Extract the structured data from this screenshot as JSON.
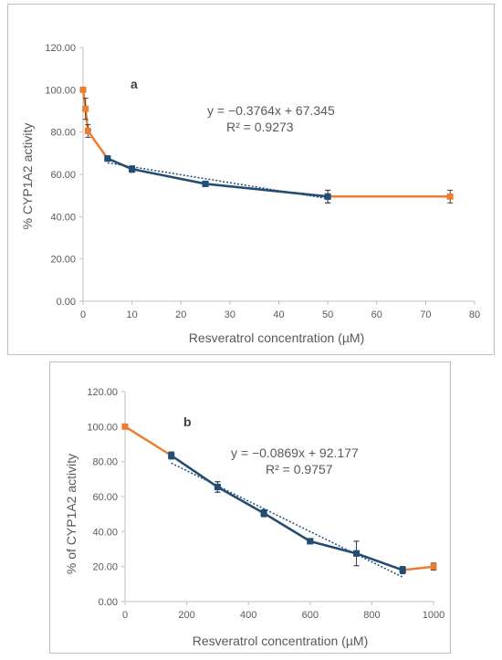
{
  "colors": {
    "highlight": "#ED7D31",
    "main": "#1F4E79",
    "axis": "#BFBFBF",
    "text": "#595959"
  },
  "chart_data": [
    {
      "type": "scatter",
      "panel_label": "a",
      "xlabel": "Resveratrol concentration (µM)",
      "ylabel": "% CYP1A2 activity",
      "xlim": [
        0,
        80
      ],
      "ylim": [
        0,
        120
      ],
      "x_ticks": [
        "0",
        "10",
        "20",
        "30",
        "40",
        "50",
        "60",
        "70",
        "80"
      ],
      "y_ticks": [
        "0.00",
        "20.00",
        "40.00",
        "60.00",
        "80.00",
        "100.00",
        "120.00"
      ],
      "equation": "y = −0.3764x + 67.345",
      "r_squared": "R² = 0.9273",
      "series": [
        {
          "role": "full",
          "color": "#ED7D31",
          "x": [
            0,
            0.5,
            1,
            5,
            10,
            25,
            50,
            75
          ],
          "y": [
            100,
            91,
            80.5,
            67.5,
            62.5,
            55.5,
            49.5,
            49.5
          ],
          "err": [
            0,
            5,
            3,
            0.5,
            1.5,
            1,
            3,
            3
          ]
        },
        {
          "role": "fitted",
          "color": "#1F4E79",
          "x": [
            5,
            10,
            25,
            50
          ],
          "y": [
            67.5,
            62.5,
            55.5,
            49.5
          ],
          "err": [
            0.5,
            1.5,
            1,
            3
          ]
        }
      ],
      "trendline": {
        "slope": -0.3764,
        "intercept": 67.345,
        "x_range": [
          5,
          50
        ]
      },
      "grid": false
    },
    {
      "type": "scatter",
      "panel_label": "b",
      "xlabel": "Resveratrol concentration (µM)",
      "ylabel": "% of CYP1A2 activity",
      "xlim": [
        0,
        1000
      ],
      "ylim": [
        0,
        120
      ],
      "x_ticks": [
        "0",
        "200",
        "400",
        "600",
        "800",
        "1000"
      ],
      "y_ticks": [
        "0.00",
        "20.00",
        "40.00",
        "60.00",
        "80.00",
        "100.00",
        "120.00"
      ],
      "equation": "y = −0.0869x + 92.177",
      "r_squared": "R² = 0.9757",
      "series": [
        {
          "role": "full",
          "color": "#ED7D31",
          "x": [
            0,
            150,
            300,
            450,
            600,
            750,
            900,
            1000
          ],
          "y": [
            100,
            83.5,
            65.5,
            50.5,
            34.5,
            27.5,
            18,
            20
          ],
          "err": [
            0,
            2,
            3,
            2,
            1,
            7,
            2,
            2
          ]
        },
        {
          "role": "fitted",
          "color": "#1F4E79",
          "x": [
            150,
            300,
            450,
            600,
            750,
            900
          ],
          "y": [
            83.5,
            65.5,
            50.5,
            34.5,
            27.5,
            18
          ],
          "err": [
            2,
            3,
            2,
            1,
            7,
            2
          ]
        }
      ],
      "trendline": {
        "slope": -0.0869,
        "intercept": 92.177,
        "x_range": [
          150,
          900
        ]
      },
      "grid": false
    }
  ]
}
